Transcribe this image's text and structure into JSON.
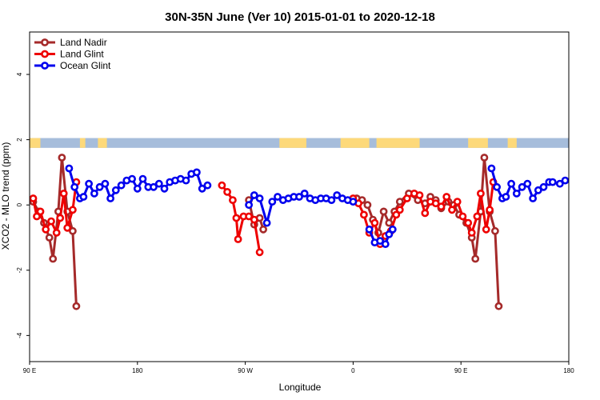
{
  "chart_data": {
    "type": "line",
    "title": "30N-35N June (Ver 10)   2015-01-01 to 2020-12-18",
    "xlabel": "Longitude",
    "ylabel": "XCO2 - MLO trend (ppm)",
    "xlim": [
      90,
      390
    ],
    "ylim": [
      -4.8,
      5.3
    ],
    "x_ticks": [
      {
        "value": 90,
        "label": "90 E"
      },
      {
        "value": 150,
        "label": "180"
      },
      {
        "value": 210,
        "label": "90 W"
      },
      {
        "value": 270,
        "label": "0"
      },
      {
        "value": 330,
        "label": "90 E"
      },
      {
        "value": 390,
        "label": "180"
      }
    ],
    "y_ticks": [
      {
        "value": -4,
        "label": "-4"
      },
      {
        "value": -2,
        "label": "-2"
      },
      {
        "value": 0,
        "label": "0"
      },
      {
        "value": 2,
        "label": "2"
      },
      {
        "value": 4,
        "label": "4"
      }
    ],
    "land_band": {
      "y_range": [
        1.75,
        2.05
      ],
      "ocean_color": "#a6bddb",
      "land_color": "#fdd97a",
      "land_segments": [
        [
          90,
          96
        ],
        [
          118,
          121
        ],
        [
          128,
          133
        ],
        [
          229,
          244
        ],
        [
          263,
          279
        ],
        [
          283,
          307
        ],
        [
          334,
          345
        ],
        [
          356,
          361
        ]
      ]
    },
    "series": [
      {
        "name": "Land Nadir",
        "color": "#a52a2a",
        "segments": [
          [
            [
              92,
              0.1
            ],
            [
              95,
              -0.2
            ],
            [
              98,
              -0.55
            ],
            [
              101,
              -1.0
            ],
            [
              103,
              -1.65
            ],
            [
              106,
              -0.2
            ],
            [
              108,
              1.45
            ],
            [
              111,
              -0.2
            ],
            [
              114,
              -0.8
            ],
            [
              116,
              -3.1
            ]
          ],
          [
            [
              212,
              0.15
            ],
            [
              215,
              -0.6
            ],
            [
              218,
              -0.4
            ],
            [
              220,
              -0.75
            ]
          ],
          [
            [
              272,
              0.2
            ],
            [
              275,
              0.15
            ],
            [
              278,
              0.0
            ],
            [
              281,
              -0.45
            ],
            [
              284,
              -0.85
            ],
            [
              287,
              -0.2
            ],
            [
              290,
              -0.55
            ],
            [
              293,
              -0.2
            ],
            [
              296,
              0.1
            ],
            [
              301,
              0.35
            ],
            [
              306,
              0.15
            ],
            [
              310,
              0.05
            ],
            [
              313,
              0.25
            ],
            [
              316,
              0.15
            ],
            [
              319,
              -0.1
            ],
            [
              323,
              0.1
            ],
            [
              326,
              0.0
            ],
            [
              329,
              -0.3
            ],
            [
              333,
              -0.55
            ],
            [
              336,
              -1.0
            ],
            [
              338,
              -1.65
            ],
            [
              341,
              -0.2
            ],
            [
              343,
              1.45
            ],
            [
              346,
              -0.2
            ],
            [
              349,
              -0.8
            ],
            [
              351,
              -3.1
            ]
          ]
        ]
      },
      {
        "name": "Land Glint",
        "color": "#ee0000",
        "segments": [
          [
            [
              92,
              0.2
            ],
            [
              94,
              -0.35
            ],
            [
              96,
              -0.2
            ],
            [
              99,
              -0.75
            ],
            [
              102,
              -0.5
            ],
            [
              105,
              -0.85
            ],
            [
              107,
              -0.4
            ],
            [
              109,
              0.35
            ],
            [
              111,
              -0.7
            ],
            [
              114,
              -0.15
            ],
            [
              116,
              0.7
            ]
          ],
          [
            [
              197,
              0.6
            ],
            [
              200,
              0.4
            ],
            [
              203,
              0.15
            ],
            [
              205,
              -0.4
            ],
            [
              206,
              -1.05
            ],
            [
              209,
              -0.35
            ],
            [
              212,
              -0.35
            ],
            [
              215,
              -0.45
            ],
            [
              218,
              -1.45
            ]
          ],
          [
            [
              270,
              0.2
            ],
            [
              273,
              0.05
            ],
            [
              276,
              -0.3
            ],
            [
              279,
              -0.85
            ],
            [
              282,
              -0.55
            ],
            [
              285,
              -1.2
            ],
            [
              288,
              -0.95
            ],
            [
              291,
              -0.8
            ],
            [
              294,
              -0.3
            ],
            [
              296,
              -0.15
            ],
            [
              300,
              0.2
            ],
            [
              304,
              0.35
            ],
            [
              307,
              0.3
            ],
            [
              310,
              -0.25
            ],
            [
              313,
              0.1
            ],
            [
              316,
              0.05
            ],
            [
              319,
              -0.05
            ],
            [
              322,
              0.25
            ],
            [
              325,
              -0.15
            ],
            [
              328,
              0.1
            ],
            [
              331,
              -0.35
            ],
            [
              334,
              -0.55
            ],
            [
              336,
              -0.85
            ],
            [
              339,
              -0.35
            ],
            [
              341,
              0.35
            ],
            [
              344,
              -0.75
            ],
            [
              346,
              -0.15
            ],
            [
              348,
              0.7
            ]
          ]
        ]
      },
      {
        "name": "Ocean Glint",
        "color": "#0000ee",
        "segments": [
          [
            [
              112,
              1.12
            ],
            [
              115,
              0.55
            ],
            [
              118,
              0.2
            ],
            [
              120,
              0.25
            ],
            [
              123,
              0.65
            ],
            [
              126,
              0.35
            ],
            [
              129,
              0.55
            ],
            [
              132,
              0.65
            ],
            [
              135,
              0.2
            ],
            [
              138,
              0.45
            ],
            [
              141,
              0.6
            ],
            [
              144,
              0.75
            ],
            [
              147,
              0.8
            ],
            [
              150,
              0.5
            ],
            [
              153,
              0.8
            ],
            [
              156,
              0.55
            ],
            [
              159,
              0.55
            ],
            [
              162,
              0.65
            ],
            [
              165,
              0.5
            ],
            [
              168,
              0.7
            ],
            [
              171,
              0.75
            ],
            [
              174,
              0.8
            ],
            [
              177,
              0.75
            ],
            [
              180,
              0.95
            ],
            [
              183,
              1.0
            ],
            [
              186,
              0.5
            ],
            [
              189,
              0.6
            ]
          ],
          [
            [
              212,
              0.0
            ],
            [
              215,
              0.3
            ],
            [
              218,
              0.2
            ],
            [
              222,
              -0.55
            ],
            [
              225,
              0.1
            ],
            [
              228,
              0.25
            ],
            [
              231,
              0.15
            ],
            [
              234,
              0.2
            ],
            [
              237,
              0.25
            ],
            [
              240,
              0.25
            ],
            [
              243,
              0.35
            ],
            [
              246,
              0.2
            ],
            [
              249,
              0.15
            ],
            [
              252,
              0.2
            ],
            [
              255,
              0.2
            ],
            [
              258,
              0.15
            ],
            [
              261,
              0.3
            ],
            [
              264,
              0.2
            ],
            [
              267,
              0.15
            ],
            [
              270,
              0.1
            ]
          ],
          [
            [
              279,
              -0.75
            ],
            [
              282,
              -1.15
            ],
            [
              285,
              -1.1
            ],
            [
              288,
              -1.2
            ],
            [
              290,
              -0.9
            ],
            [
              292,
              -0.75
            ]
          ],
          [
            [
              347,
              1.12
            ],
            [
              350,
              0.55
            ],
            [
              353,
              0.2
            ],
            [
              355,
              0.25
            ],
            [
              358,
              0.65
            ],
            [
              361,
              0.35
            ],
            [
              364,
              0.55
            ],
            [
              367,
              0.65
            ],
            [
              370,
              0.2
            ],
            [
              373,
              0.45
            ],
            [
              376,
              0.55
            ],
            [
              379,
              0.7
            ],
            [
              381,
              0.7
            ],
            [
              385,
              0.65
            ],
            [
              388,
              0.75
            ]
          ]
        ]
      }
    ],
    "legend_position": "top-left"
  }
}
